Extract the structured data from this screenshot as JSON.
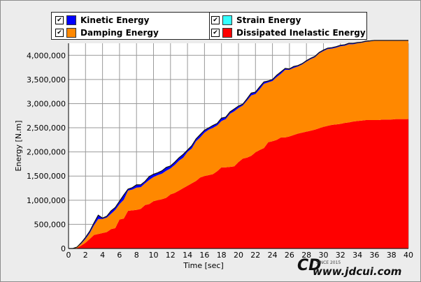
{
  "legend": {
    "items": [
      {
        "label": "Kinetic Energy",
        "color": "#0000ff"
      },
      {
        "label": "Strain Energy",
        "color": "#33ffff"
      },
      {
        "label": "Damping Energy",
        "color": "#ff8800"
      },
      {
        "label": "Dissipated Inelastic Energy",
        "color": "#ff0000"
      }
    ]
  },
  "watermark": {
    "logo": "CD",
    "since": "SINCE 2015",
    "url": "www.jdcui.com"
  },
  "chart_data": {
    "type": "area",
    "xlabel": "Time [sec]",
    "ylabel": "Energy [N.m]",
    "xlim": [
      0,
      40
    ],
    "ylim": [
      0,
      4250000
    ],
    "x_ticks": [
      0,
      2,
      4,
      6,
      8,
      10,
      12,
      14,
      16,
      18,
      20,
      22,
      24,
      26,
      28,
      30,
      32,
      34,
      36,
      38,
      40
    ],
    "y_ticks": [
      0,
      500000,
      1000000,
      1500000,
      2000000,
      2500000,
      3000000,
      3500000,
      4000000
    ],
    "y_tick_labels": [
      "0",
      "500,000",
      "1,000,000",
      "1,500,000",
      "2,000,000",
      "2,500,000",
      "3,000,000",
      "3,500,000",
      "4,000,000"
    ],
    "grid": true,
    "stacked": true,
    "x": [
      0,
      0.5,
      1,
      1.5,
      2,
      2.5,
      3,
      3.5,
      4,
      4.5,
      5,
      5.5,
      6,
      6.5,
      7,
      7.5,
      8,
      8.5,
      9,
      9.5,
      10,
      10.5,
      11,
      11.5,
      12,
      12.5,
      13,
      13.5,
      14,
      14.5,
      15,
      15.5,
      16,
      16.5,
      17,
      17.5,
      18,
      18.5,
      19,
      19.5,
      20,
      20.5,
      21,
      21.5,
      22,
      22.5,
      23,
      23.5,
      24,
      24.5,
      25,
      25.5,
      26,
      26.5,
      27,
      27.5,
      28,
      28.5,
      29,
      29.5,
      30,
      30.5,
      31,
      31.5,
      32,
      32.5,
      33,
      33.5,
      34,
      34.5,
      35,
      35.5,
      36,
      36.5,
      37,
      37.5,
      38,
      38.5,
      39,
      39.5,
      40
    ],
    "series": [
      {
        "name": "Dissipated Inelastic Energy",
        "values": [
          0,
          0,
          10000,
          60000,
          120000,
          200000,
          280000,
          300000,
          320000,
          340000,
          400000,
          420000,
          600000,
          620000,
          780000,
          790000,
          800000,
          820000,
          900000,
          920000,
          980000,
          1000000,
          1020000,
          1050000,
          1120000,
          1150000,
          1200000,
          1250000,
          1300000,
          1350000,
          1400000,
          1470000,
          1500000,
          1520000,
          1540000,
          1600000,
          1680000,
          1680000,
          1690000,
          1700000,
          1790000,
          1860000,
          1880000,
          1920000,
          1990000,
          2040000,
          2080000,
          2200000,
          2220000,
          2250000,
          2300000,
          2300000,
          2320000,
          2350000,
          2380000,
          2400000,
          2420000,
          2440000,
          2460000,
          2490000,
          2520000,
          2540000,
          2560000,
          2570000,
          2580000,
          2600000,
          2610000,
          2630000,
          2640000,
          2650000,
          2660000,
          2660000,
          2660000,
          2660000,
          2670000,
          2670000,
          2670000,
          2680000,
          2680000,
          2680000,
          2680000
        ]
      },
      {
        "name": "Damping Energy",
        "values": [
          0,
          0,
          15000,
          40000,
          80000,
          120000,
          200000,
          310000,
          290000,
          300000,
          320000,
          380000,
          320000,
          390000,
          420000,
          430000,
          460000,
          450000,
          450000,
          500000,
          500000,
          520000,
          530000,
          560000,
          540000,
          580000,
          620000,
          630000,
          700000,
          720000,
          820000,
          830000,
          900000,
          940000,
          960000,
          950000,
          960000,
          1000000,
          1100000,
          1140000,
          1120000,
          1100000,
          1180000,
          1250000,
          1210000,
          1260000,
          1330000,
          1240000,
          1250000,
          1300000,
          1320000,
          1400000,
          1380000,
          1390000,
          1390000,
          1410000,
          1450000,
          1480000,
          1500000,
          1550000,
          1570000,
          1590000,
          1580000,
          1590000,
          1610000,
          1600000,
          1620000,
          1600000,
          1610000,
          1610000,
          1620000,
          1630000,
          1640000,
          1640000,
          1630000,
          1630000,
          1630000,
          1620000,
          1620000,
          1620000,
          1620000
        ]
      },
      {
        "name": "Strain Energy",
        "values": [
          0,
          0,
          0,
          0,
          0,
          0,
          0,
          0,
          0,
          0,
          0,
          0,
          0,
          0,
          0,
          0,
          0,
          0,
          0,
          0,
          0,
          0,
          0,
          0,
          0,
          0,
          0,
          0,
          0,
          0,
          0,
          0,
          0,
          0,
          0,
          0,
          0,
          0,
          0,
          0,
          0,
          0,
          0,
          0,
          0,
          0,
          0,
          0,
          0,
          0,
          0,
          0,
          0,
          0,
          0,
          0,
          0,
          0,
          0,
          0,
          0,
          0,
          0,
          0,
          0,
          0,
          0,
          0,
          0,
          0,
          0,
          0,
          0,
          0,
          0,
          0,
          0,
          0,
          0,
          0,
          0
        ]
      },
      {
        "name": "Kinetic Energy",
        "values": [
          0,
          0,
          5000,
          20000,
          30000,
          40000,
          50000,
          80000,
          20000,
          30000,
          60000,
          50000,
          60000,
          100000,
          30000,
          40000,
          60000,
          50000,
          40000,
          70000,
          60000,
          50000,
          60000,
          70000,
          50000,
          60000,
          60000,
          70000,
          40000,
          60000,
          50000,
          60000,
          50000,
          40000,
          50000,
          40000,
          60000,
          40000,
          40000,
          50000,
          40000,
          30000,
          40000,
          50000,
          40000,
          50000,
          40000,
          30000,
          30000,
          40000,
          40000,
          30000,
          20000,
          30000,
          20000,
          20000,
          20000,
          20000,
          20000,
          20000,
          20000,
          20000,
          20000,
          20000,
          20000,
          20000,
          20000,
          20000,
          15000,
          15000,
          15000,
          10000,
          10000,
          10000,
          10000,
          10000,
          10000,
          10000,
          10000,
          10000,
          10000
        ]
      }
    ]
  }
}
